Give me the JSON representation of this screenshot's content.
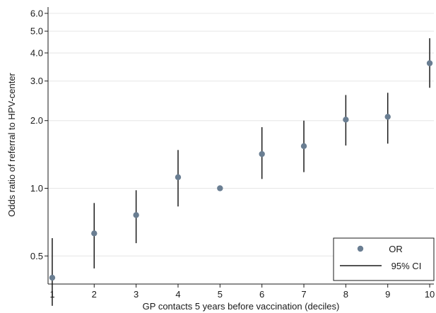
{
  "chart_data": {
    "type": "scatter",
    "xlabel": "GP contacts 5 years before vaccination (deciles)",
    "ylabel": "Odds ratio of referral to HPV-center",
    "y_scale": "log",
    "xlim": [
      0.9,
      10.1
    ],
    "ylim": [
      0.375,
      6.4
    ],
    "x_ticks": [
      1,
      2,
      3,
      4,
      5,
      6,
      7,
      8,
      9,
      10
    ],
    "x_tick_labels": [
      "1",
      "2",
      "3",
      "4",
      "5",
      "6",
      "7",
      "8",
      "9",
      "10"
    ],
    "y_ticks": [
      0.5,
      1.0,
      2.0,
      3.0,
      4.0,
      5.0,
      6.0
    ],
    "y_tick_labels": [
      "0.5",
      "1.0",
      "2.0",
      "3.0",
      "4.0",
      "5.0",
      "6.0"
    ],
    "grid": "horizontal",
    "legend_position": "bottom-right",
    "legend": [
      {
        "label": "OR",
        "symbol": "marker"
      },
      {
        "label": "95% CI",
        "symbol": "line"
      }
    ],
    "colors": {
      "marker": "#6a7e92",
      "ci_line": "#1a1a1a",
      "grid": "#e6e6e6",
      "axis": "#1a1a1a"
    },
    "series": [
      {
        "name": "OR",
        "x": [
          1,
          2,
          3,
          4,
          5,
          6,
          7,
          8,
          9,
          10
        ],
        "y": [
          0.4,
          0.63,
          0.76,
          1.12,
          1.0,
          1.42,
          1.54,
          2.02,
          2.08,
          3.6
        ],
        "ci_low": [
          0.3,
          0.44,
          0.57,
          0.83,
          null,
          1.1,
          1.18,
          1.55,
          1.58,
          2.8
        ],
        "ci_high": [
          0.6,
          0.86,
          0.98,
          1.48,
          null,
          1.87,
          2.0,
          2.6,
          2.66,
          4.65
        ]
      }
    ]
  }
}
